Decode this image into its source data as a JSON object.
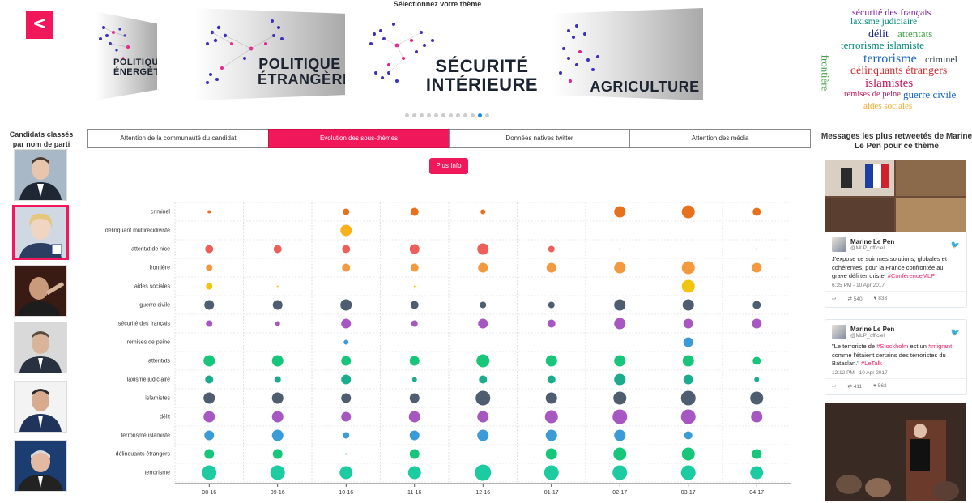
{
  "header": {
    "back_label": "<",
    "theme_title": "Sélectionnez votre thème"
  },
  "themes": [
    {
      "label": "POLITIQUE ÉNERGÉTIQUE",
      "active": false
    },
    {
      "label": "POLITIQUE ÉTRANGÈRE",
      "active": false
    },
    {
      "label": "SÉCURITÉ INTÉRIEURE",
      "active": true
    },
    {
      "label": "AGRICULTURE",
      "active": false
    }
  ],
  "carousel": {
    "count": 12,
    "active_index": 10
  },
  "wordcloud": [
    {
      "text": "sécurité des français",
      "color": "#7b1fa2"
    },
    {
      "text": "laxisme judiciaire",
      "color": "#00897b"
    },
    {
      "text": "délit",
      "color": "#1a237e"
    },
    {
      "text": "attentats",
      "color": "#43a047"
    },
    {
      "text": "terrorisme islamiste",
      "color": "#00897b"
    },
    {
      "text": "frontière",
      "color": "#43a047"
    },
    {
      "text": "terrorisme",
      "color": "#1565c0"
    },
    {
      "text": "criminel",
      "color": "#37474f"
    },
    {
      "text": "délinquants étrangers",
      "color": "#d32f2f"
    },
    {
      "text": "islamistes",
      "color": "#c2185b"
    },
    {
      "text": "remises de peine",
      "color": "#c2185b"
    },
    {
      "text": "guerre civile",
      "color": "#1565c0"
    },
    {
      "text": "aides sociales",
      "color": "#f9a825"
    }
  ],
  "candidates": {
    "title": "Candidats classés par nom de parti",
    "selected_index": 1,
    "count": 6
  },
  "tabs": [
    {
      "label": "Attention de la communauté du candidat",
      "active": false
    },
    {
      "label": "Évolution des sous-thèmes",
      "active": true
    },
    {
      "label": "Données natives twitter",
      "active": false
    },
    {
      "label": "Attention des média",
      "active": false
    }
  ],
  "info_button": "Plus Info",
  "chart_data": {
    "type": "scatter",
    "x": [
      "08-16",
      "09-16",
      "10-16",
      "11-16",
      "12-16",
      "01-17",
      "02-17",
      "03-17",
      "04-17"
    ],
    "categories": [
      "criminel",
      "délinquant multirécidiviste",
      "attentat de nice",
      "frontière",
      "aides sociales",
      "guerre civile",
      "sécurité des français",
      "remises de peine",
      "attentats",
      "laxisme judiciaire",
      "islamistes",
      "délit",
      "terrorisme islamiste",
      "délinquants étrangers",
      "terrorisme"
    ],
    "colors": [
      "#e8711d",
      "#f9b21b",
      "#ef5f5a",
      "#f39a3e",
      "#f1c40f",
      "#4e5e70",
      "#a757c1",
      "#3b9bd6",
      "#18c67a",
      "#1aac8c",
      "#4e5e70",
      "#a757c1",
      "#3b9bd6",
      "#18c67a",
      "#1ccba0"
    ],
    "sizes": [
      [
        2,
        0,
        4,
        5,
        3,
        0,
        7,
        8,
        5
      ],
      [
        0,
        0,
        7,
        0,
        0,
        0,
        0,
        0,
        0
      ],
      [
        5,
        5,
        5,
        6,
        7,
        4,
        1,
        0,
        1
      ],
      [
        4,
        0,
        5,
        5,
        6,
        6,
        7,
        8,
        6
      ],
      [
        4,
        1,
        0,
        1,
        0,
        0,
        0,
        8,
        0
      ],
      [
        6,
        6,
        7,
        5,
        4,
        4,
        7,
        7,
        5
      ],
      [
        4,
        3,
        6,
        4,
        6,
        5,
        7,
        6,
        6
      ],
      [
        0,
        0,
        3,
        0,
        0,
        0,
        0,
        6,
        0
      ],
      [
        7,
        7,
        6,
        6,
        8,
        7,
        7,
        7,
        5
      ],
      [
        5,
        4,
        6,
        3,
        5,
        5,
        7,
        6,
        3
      ],
      [
        7,
        7,
        6,
        6,
        9,
        7,
        8,
        9,
        8
      ],
      [
        7,
        7,
        6,
        7,
        7,
        8,
        9,
        9,
        7
      ],
      [
        6,
        7,
        4,
        6,
        7,
        7,
        7,
        5,
        0
      ],
      [
        6,
        6,
        1,
        6,
        0,
        7,
        8,
        8,
        6
      ],
      [
        9,
        9,
        8,
        8,
        10,
        9,
        9,
        9,
        8
      ]
    ]
  },
  "tweets_panel": {
    "title": "Messages les plus retweetés de Marine Le Pen pour ce thème",
    "tweets": [
      {
        "name": "Marine Le Pen",
        "handle": "@MLP_officiel",
        "text": "J'expose ce soir mes solutions, globales et cohérentes, pour la France confrontée au grave défi terroriste.",
        "hashtag": "#ConférenceMLP",
        "date": "6:35 PM - 10 Apr 2017",
        "retweets": "540",
        "likes": "833"
      },
      {
        "name": "Marine Le Pen",
        "handle": "@MLP_officiel",
        "text_a": "\"Le terroriste de ",
        "tag1": "#Stockholm",
        "text_b": " est un ",
        "tag2": "#migrant",
        "text_c": ", comme l'étaient certains des terroristes du Bataclan.\" ",
        "tag3": "#LeTalk",
        "date": "12:12 PM - 10 Apr 2017",
        "retweets": "411",
        "likes": "562"
      }
    ]
  }
}
